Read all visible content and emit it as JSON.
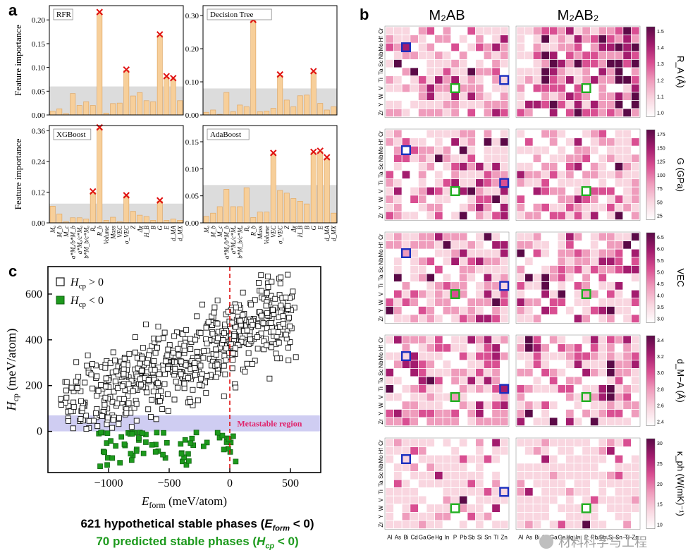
{
  "panel_labels": {
    "a": "a",
    "b": "b",
    "c": "c"
  },
  "panel_a": {
    "ylabel": "Feature importance",
    "features": [
      "M_a",
      "M_b",
      "M_c",
      "a*M_a/b*M_b",
      "a*M_a/c*M_a",
      "b*M_b/c*M_a",
      "R_a",
      "R_b",
      "Mass",
      "Volume",
      "σ_VEC",
      "VEC",
      "Z_σ",
      "Δχ",
      "H_B",
      "B",
      "G",
      "E",
      "d_MA",
      "d_MX"
    ],
    "feature_labels": [
      "Mₐ",
      "M_b",
      "M_c",
      "a*Mₐ/b*M_b",
      "a*Mₐ/c*Mₐ",
      "b*M_b/c*Mₐ",
      "Rₐ",
      "R_b",
      "Mass",
      "Volume",
      "σ_VEC",
      "VEC",
      "Z",
      "Δχ",
      "H_B",
      "B",
      "G",
      "E",
      "d_MA",
      "d_MX"
    ],
    "xtick_labels_left": [
      "Mₐ",
      "M_b",
      "M_c",
      "a*Mₐ/b*M_b",
      "a*Mₐ/c*Mₐ",
      "b*M_b/c*Mₐ",
      "Rₐ",
      "R_b",
      "Volume",
      "Mass",
      "VEC",
      "σ_VEC",
      "Z",
      "Δχ",
      "H_B",
      "B",
      "G",
      "E",
      "d_MA",
      "d_MX"
    ],
    "xtick_labels_right": [
      "Mₐ",
      "M_b",
      "M_c",
      "a*Mₐ/b*M_b",
      "a*Mₐ/c*Mₐ",
      "b*M_b/c*Mₐ",
      "Rₐ",
      "R_b",
      "Mass",
      "Volume",
      "VEC",
      "σ_VEC",
      "Z",
      "Δχ",
      "H_B",
      "B",
      "G",
      "E",
      "d_MA",
      "d_MX"
    ]
  },
  "panel_c": {
    "ylabel": "H_cp (meV/atom)",
    "xlabel": "E_form (meV/atom)",
    "legend_pos": "H_cp > 0",
    "legend_neg": "H_cp < 0",
    "region_label": "Metastable region",
    "caption1_prefix": "621 hypothetical stable phases (",
    "caption1_var": "E",
    "caption1_sub": "form",
    "caption1_suffix": " < 0)",
    "caption2_prefix": "70 predicted stable phases (",
    "caption2_var": "H",
    "caption2_sub": "cp",
    "caption2_suffix": " < 0)"
  },
  "panel_b": {
    "col_titles": [
      "M₂AB",
      "M₂AB₂"
    ],
    "row_labels": [
      "Cr",
      "Hf",
      "Mo",
      "Nb",
      "Sc",
      "Ta",
      "Ti",
      "V",
      "W",
      "Y",
      "Zr"
    ],
    "col_labels": [
      "Al",
      "As",
      "Bi",
      "Cd",
      "Ga",
      "Ge",
      "Hg",
      "In",
      "P",
      "Pb",
      "Sb",
      "Si",
      "Sn",
      "Tl",
      "Zn"
    ],
    "colorbars": [
      {
        "label": "R_A (Å)",
        "ticks": [
          "1.5",
          "1.4",
          "1.3",
          "1.2",
          "1.1",
          "1.0"
        ]
      },
      {
        "label": "G (GPa)",
        "ticks": [
          "175",
          "150",
          "125",
          "100",
          "75",
          "50",
          "25"
        ]
      },
      {
        "label": "VEC",
        "ticks": [
          "6.5",
          "6.0",
          "5.5",
          "5.0",
          "4.5",
          "4.0",
          "3.5",
          "3.0"
        ]
      },
      {
        "label": "d_M−A (Å)",
        "ticks": [
          "3.4",
          "3.2",
          "3.0",
          "2.8",
          "2.6",
          "2.4"
        ]
      },
      {
        "label": "κ_ph (W(mK)⁻¹)",
        "ticks": [
          "30",
          "25",
          "20",
          "15",
          "10"
        ]
      }
    ],
    "watermark": "材料科学与工程"
  },
  "chart_data": [
    {
      "type": "bar",
      "title": "RFR",
      "ylabel": "Feature importance",
      "ylim": [
        0,
        0.23
      ],
      "yticks": [
        0.0,
        0.05,
        0.1,
        0.15,
        0.2
      ],
      "threshold": 0.06,
      "values": [
        0.008,
        0.013,
        0.003,
        0.045,
        0.02,
        0.028,
        0.02,
        0.215,
        0.004,
        0.024,
        0.025,
        0.094,
        0.04,
        0.047,
        0.03,
        0.028,
        0.168,
        0.08,
        0.076,
        0.03
      ],
      "marked": [
        7,
        11,
        16,
        17,
        18
      ]
    },
    {
      "type": "bar",
      "title": "Decision Tree",
      "ylim": [
        0,
        0.33
      ],
      "yticks": [
        0.0,
        0.1,
        0.2,
        0.3
      ],
      "threshold": 0.08,
      "values": [
        0.008,
        0.015,
        0.002,
        0.068,
        0.01,
        0.03,
        0.025,
        0.285,
        0.01,
        0.012,
        0.02,
        0.12,
        0.045,
        0.025,
        0.058,
        0.06,
        0.13,
        0.035,
        0.015,
        0.025
      ],
      "marked": [
        7,
        11,
        16
      ]
    },
    {
      "type": "bar",
      "title": "XGBoost",
      "ylabel": "Feature importance",
      "ylim": [
        0,
        0.38
      ],
      "yticks": [
        0.0,
        0.12,
        0.24,
        0.36
      ],
      "threshold": 0.075,
      "values": [
        0.065,
        0.035,
        0.005,
        0.02,
        0.02,
        0.015,
        0.12,
        0.37,
        0.01,
        0.022,
        0.005,
        0.105,
        0.045,
        0.03,
        0.025,
        0.01,
        0.085,
        0.01,
        0.015,
        0.01
      ],
      "marked": [
        6,
        7,
        11,
        16
      ]
    },
    {
      "type": "bar",
      "title": "AdaBoost",
      "ylim": [
        0,
        0.18
      ],
      "yticks": [
        0.0,
        0.05,
        0.1,
        0.15
      ],
      "threshold": 0.07,
      "values": [
        0.012,
        0.018,
        0.03,
        0.062,
        0.03,
        0.03,
        0.065,
        0.01,
        0.02,
        0.02,
        0.128,
        0.06,
        0.055,
        0.045,
        0.04,
        0.035,
        0.13,
        0.132,
        0.12,
        0.018
      ],
      "marked": [
        10,
        16,
        17,
        18
      ]
    },
    {
      "type": "scatter",
      "xlabel": "E_form (meV/atom)",
      "ylabel": "H_cp (meV/atom)",
      "xlim": [
        -1500,
        750
      ],
      "ylim": [
        -180,
        720
      ],
      "xticks": [
        -1000,
        -500,
        0,
        500
      ],
      "yticks": [
        0,
        200,
        400,
        600
      ],
      "metastable_band": [
        0,
        50
      ],
      "vline_x": 0,
      "series": [
        {
          "name": "H_cp > 0",
          "marker": "hollow-square",
          "count": 621
        },
        {
          "name": "H_cp < 0",
          "marker": "filled-square",
          "color": "#1d9a1d",
          "count": 70
        }
      ]
    },
    {
      "type": "heatmap",
      "rows": [
        "Cr",
        "Hf",
        "Mo",
        "Nb",
        "Sc",
        "Ta",
        "Ti",
        "V",
        "W",
        "Y",
        "Zr"
      ],
      "cols": [
        "Al",
        "As",
        "Bi",
        "Cd",
        "Ga",
        "Ge",
        "Hg",
        "In",
        "P",
        "Pb",
        "Sb",
        "Si",
        "Sn",
        "Tl",
        "Zn"
      ],
      "blocks": 10,
      "colormap": [
        "#ffffff",
        "#f9d6e0",
        "#ef9cbc",
        "#d94f92",
        "#a31c6e",
        "#5b0a47"
      ]
    }
  ]
}
